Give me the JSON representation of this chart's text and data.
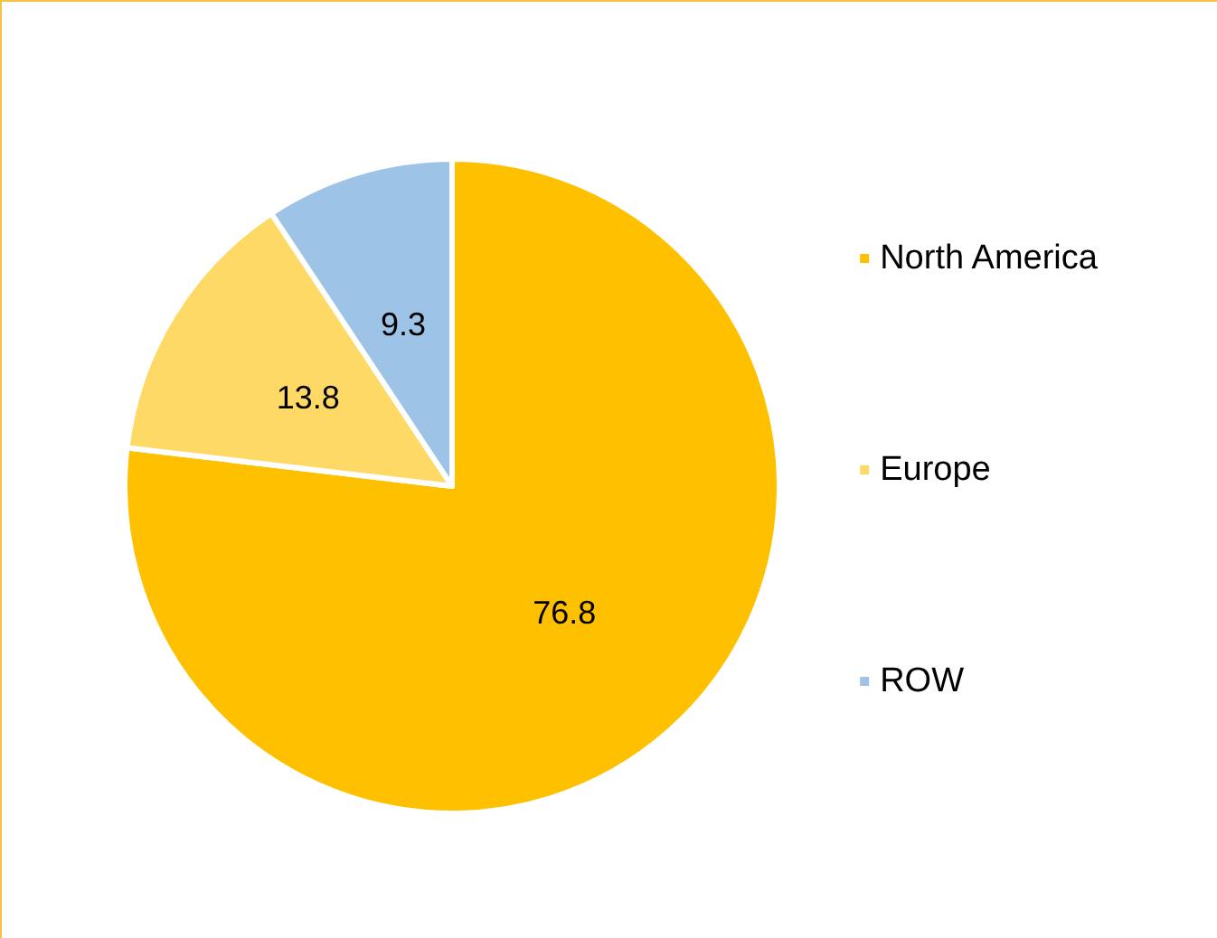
{
  "chart_data": {
    "type": "pie",
    "categories": [
      "North America",
      "Europe",
      "ROW"
    ],
    "values": [
      76.8,
      13.8,
      9.3
    ],
    "colors": [
      "#ffc000",
      "#ffd966",
      "#9dc3e6"
    ],
    "data_labels": true,
    "legend": "right"
  }
}
